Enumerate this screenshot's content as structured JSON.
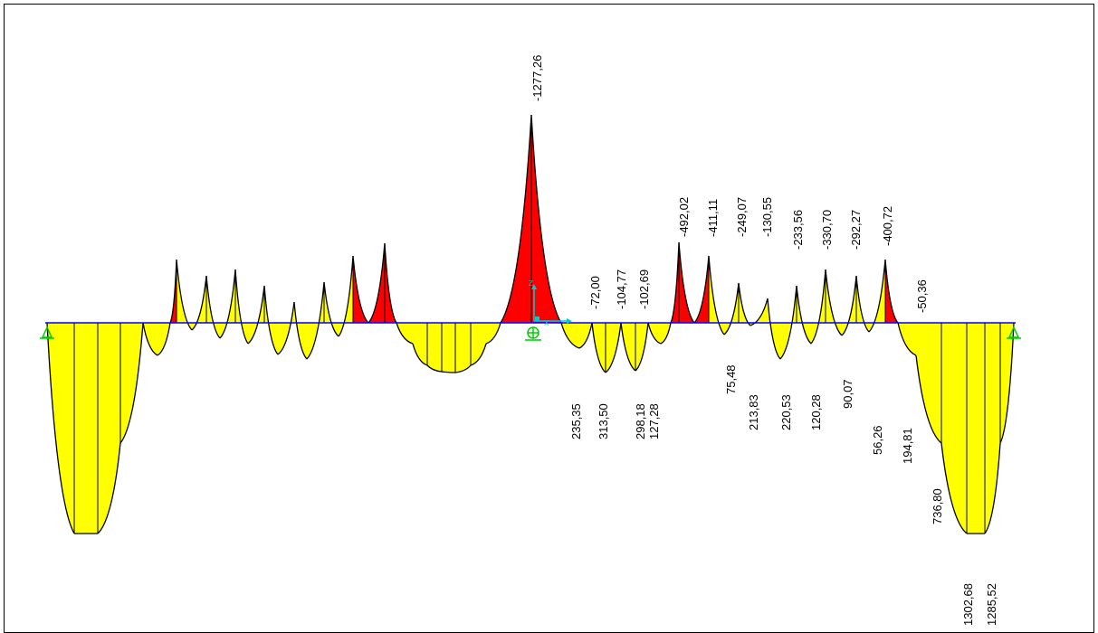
{
  "diagram": {
    "colors": {
      "positive_fill": "#ffff00",
      "negative_fill": "#ff0000",
      "outline": "#000000",
      "axis": "#0000ff",
      "support": "#00cc00",
      "local_axes": "#00cccc",
      "frame": "#000000"
    },
    "top_labels": [
      {
        "text": "-1277,26"
      },
      {
        "text": "-72,00"
      },
      {
        "text": "-104,77"
      },
      {
        "text": "-102,69"
      },
      {
        "text": "-492,02"
      },
      {
        "text": "-411,11"
      },
      {
        "text": "-249,07"
      },
      {
        "text": "-130,55"
      },
      {
        "text": "-233,56"
      },
      {
        "text": "-330,70"
      },
      {
        "text": "-292,27"
      },
      {
        "text": "-400,72"
      },
      {
        "text": "-50,36"
      }
    ],
    "bottom_labels": [
      {
        "text": "235,35"
      },
      {
        "text": "313,50"
      },
      {
        "text": "298,18"
      },
      {
        "text": "127,28"
      },
      {
        "text": "75,48"
      },
      {
        "text": "213,83"
      },
      {
        "text": "220,53"
      },
      {
        "text": "120,28"
      },
      {
        "text": "90,07"
      },
      {
        "text": "56,26"
      },
      {
        "text": "194,81"
      },
      {
        "text": "736,80"
      },
      {
        "text": "1302,68"
      },
      {
        "text": "1285,52"
      }
    ],
    "axis_symbols": {
      "z": "Z",
      "x": "X"
    }
  }
}
